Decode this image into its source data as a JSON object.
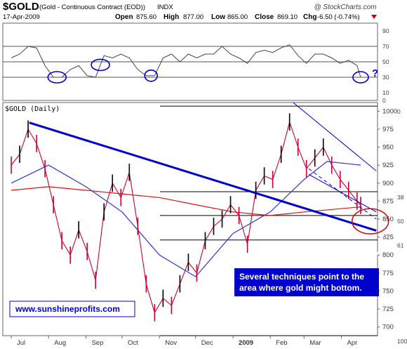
{
  "header": {
    "symbol": "$GOLD",
    "name": "(Gold - Continuous Contract (EOD))",
    "exchange": "INDX",
    "credit": "@ StockCharts.com",
    "date": "17-Apr-2009",
    "open_label": "Open",
    "open": "875.60",
    "high_label": "High",
    "high": "877.00",
    "low_label": "Low",
    "low": "865.00",
    "close_label": "Close",
    "close": "869.10",
    "chg_label": "Chg",
    "chg": "-6.50 (-0.74%)"
  },
  "colors": {
    "price_up": "#000000",
    "price_down": "#cc0033",
    "ma_short": "#3333cc",
    "ma_long": "#dd1111",
    "trendline": "#0000cc",
    "highlight": "#0000cc",
    "annotation_bg": "#0000cc"
  },
  "annotation": {
    "line1": "Several techniques point to the",
    "line2": "area where gold might bottom."
  },
  "website": "www.sunshineprofits.com",
  "question_mark": "?",
  "chart_data": [
    {
      "type": "line",
      "panel": "RSI",
      "ylim": [
        0,
        100
      ],
      "y_ticks": [
        10,
        30,
        50,
        70,
        90
      ],
      "extra_labels": [
        "0"
      ],
      "reference_lines": [
        30,
        50,
        70
      ],
      "x_dates": [
        "2008-07-01",
        "2008-07-08",
        "2008-07-15",
        "2008-07-22",
        "2008-07-29",
        "2008-08-05",
        "2008-08-12",
        "2008-08-19",
        "2008-08-26",
        "2008-09-02",
        "2008-09-09",
        "2008-09-16",
        "2008-09-23",
        "2008-09-30",
        "2008-10-07",
        "2008-10-14",
        "2008-10-21",
        "2008-10-28",
        "2008-11-04",
        "2008-11-11",
        "2008-11-18",
        "2008-11-25",
        "2008-12-02",
        "2008-12-09",
        "2008-12-16",
        "2008-12-23",
        "2008-12-30",
        "2009-01-06",
        "2009-01-13",
        "2009-01-20",
        "2009-01-27",
        "2009-02-03",
        "2009-02-10",
        "2009-02-17",
        "2009-02-24",
        "2009-03-03",
        "2009-03-10",
        "2009-03-17",
        "2009-03-24",
        "2009-03-31",
        "2009-04-07",
        "2009-04-14",
        "2009-04-17"
      ],
      "values": [
        55,
        60,
        70,
        68,
        45,
        30,
        30,
        40,
        45,
        32,
        30,
        58,
        55,
        60,
        55,
        40,
        32,
        32,
        55,
        60,
        50,
        60,
        55,
        60,
        60,
        70,
        60,
        55,
        48,
        62,
        65,
        62,
        68,
        72,
        58,
        48,
        60,
        60,
        55,
        48,
        52,
        45,
        30
      ],
      "highlight_circles_at": [
        "2008-08-08",
        "2008-09-13",
        "2008-10-25",
        "2009-04-17"
      ]
    },
    {
      "type": "line",
      "panel": "$GOLD (Daily)",
      "title": "$GOLD (Daily)",
      "ylim": [
        688,
        1012
      ],
      "y_ticks": [
        700,
        725,
        750,
        775,
        800,
        825,
        850,
        875,
        900,
        925,
        950,
        975,
        1000
      ],
      "x_ticks": [
        "Jul",
        "Aug",
        "Sep",
        "Oct",
        "Nov",
        "Dec",
        "2009",
        "Feb",
        "Mar",
        "Apr"
      ],
      "fib_levels": [
        {
          "price": 1007,
          "label": "0"
        },
        {
          "price": 888,
          "label": "38"
        },
        {
          "price": 855,
          "label": "50"
        },
        {
          "price": 821,
          "label": "61"
        },
        {
          "price": 688,
          "label": "100"
        }
      ],
      "series": [
        {
          "style": "price",
          "dates": [
            "2008-07-01",
            "2008-07-08",
            "2008-07-15",
            "2008-07-22",
            "2008-07-29",
            "2008-08-05",
            "2008-08-12",
            "2008-08-19",
            "2008-08-26",
            "2008-09-02",
            "2008-09-09",
            "2008-09-16",
            "2008-09-23",
            "2008-09-30",
            "2008-10-07",
            "2008-10-14",
            "2008-10-21",
            "2008-10-28",
            "2008-11-04",
            "2008-11-11",
            "2008-11-18",
            "2008-11-25",
            "2008-12-02",
            "2008-12-09",
            "2008-12-16",
            "2008-12-23",
            "2008-12-30",
            "2009-01-06",
            "2009-01-13",
            "2009-01-20",
            "2009-01-27",
            "2009-02-03",
            "2009-02-10",
            "2009-02-17",
            "2009-02-24",
            "2009-03-03",
            "2009-03-10",
            "2009-03-17",
            "2009-03-24",
            "2009-03-31",
            "2009-04-07",
            "2009-04-14",
            "2009-04-17"
          ],
          "values": [
            925,
            940,
            975,
            955,
            920,
            870,
            820,
            800,
            835,
            805,
            765,
            860,
            900,
            880,
            915,
            840,
            760,
            720,
            740,
            730,
            760,
            790,
            775,
            820,
            840,
            850,
            870,
            855,
            815,
            890,
            910,
            905,
            940,
            985,
            950,
            920,
            935,
            950,
            925,
            905,
            890,
            875,
            869
          ]
        },
        {
          "style": "ma_short",
          "dates": [
            "2008-07-01",
            "2008-08-01",
            "2008-09-01",
            "2008-10-01",
            "2008-11-01",
            "2008-12-01",
            "2009-01-01",
            "2009-02-01",
            "2009-03-01",
            "2009-03-20",
            "2009-04-17"
          ],
          "values": [
            900,
            925,
            895,
            860,
            800,
            770,
            830,
            860,
            905,
            930,
            925
          ]
        },
        {
          "style": "ma_long",
          "dates": [
            "2008-07-01",
            "2008-08-01",
            "2008-09-01",
            "2008-10-01",
            "2008-11-01",
            "2008-12-01",
            "2009-01-01",
            "2009-02-01",
            "2009-03-01",
            "2009-04-17"
          ],
          "values": [
            890,
            895,
            890,
            885,
            880,
            870,
            860,
            855,
            860,
            867
          ]
        }
      ],
      "trendlines": [
        {
          "style": "trendline",
          "dates": [
            "2008-07-16",
            "2009-04-30"
          ],
          "values": [
            984,
            834
          ]
        },
        {
          "style": "channel_upper",
          "dates": [
            "2009-02-20",
            "2009-04-30"
          ],
          "values": [
            1012,
            917
          ]
        },
        {
          "style": "channel_lower",
          "dates": [
            "2009-03-05",
            "2009-04-30"
          ],
          "values": [
            912,
            860
          ]
        },
        {
          "style": "channel_dashed",
          "dates": [
            "2009-03-05",
            "2009-04-30"
          ],
          "values": [
            920,
            850
          ]
        }
      ],
      "target_ellipse": {
        "date": "2009-04-25",
        "price": 847
      }
    }
  ]
}
